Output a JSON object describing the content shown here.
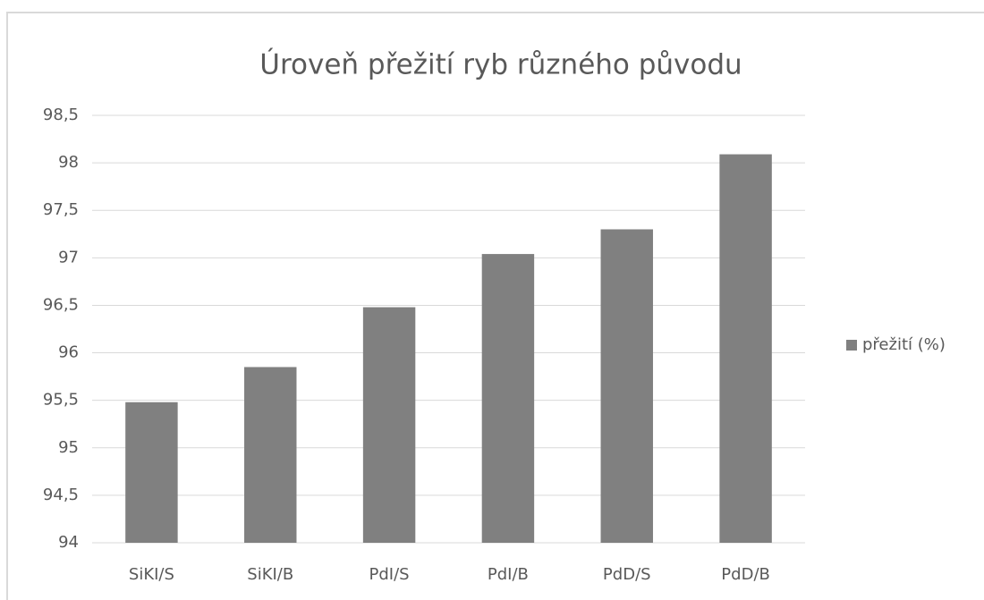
{
  "chart_data": {
    "type": "bar",
    "title": "Úroveň přežití ryb různého původu",
    "categories": [
      "SiKI/S",
      "SiKI/B",
      "PdI/S",
      "PdI/B",
      "PdD/S",
      "PdD/B"
    ],
    "series": [
      {
        "name": "přežití (%)",
        "color": "#808080",
        "values": [
          95.48,
          95.85,
          96.48,
          97.04,
          97.3,
          98.09
        ]
      }
    ],
    "ylim": [
      94,
      98.5
    ],
    "yticks": [
      94,
      {
        "value": 94.5,
        "label": "94,5"
      },
      95,
      {
        "value": 95.5,
        "label": "95,5"
      },
      96,
      {
        "value": 96.5,
        "label": "96,5"
      },
      97,
      {
        "value": 97.5,
        "label": "97,5"
      },
      98,
      {
        "value": 98.5,
        "label": "98,5"
      }
    ],
    "grid": true,
    "legend": "right"
  }
}
